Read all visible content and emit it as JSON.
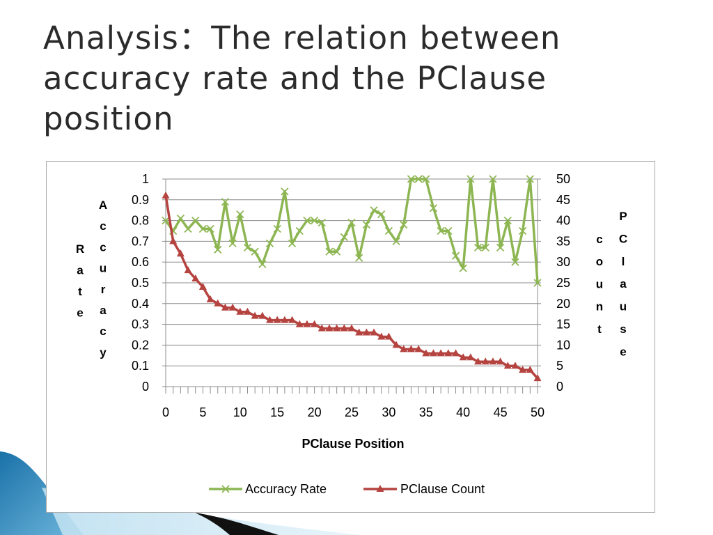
{
  "slide": {
    "title": "Analysis：The relation between accuracy rate and the PClause position"
  },
  "colors": {
    "accuracy": "#8db653",
    "count": "#b5433f",
    "grid": "#8c8c8c",
    "title": "#2b2b2b"
  },
  "chart_data": {
    "type": "line",
    "xlabel": "PClause Position",
    "ylabel_left": [
      "Rate",
      "Accuracy"
    ],
    "ylabel_right": [
      "count",
      "PClause"
    ],
    "x_ticks": [
      "0",
      "5",
      "10",
      "15",
      "20",
      "25",
      "30",
      "35",
      "40",
      "45",
      "50"
    ],
    "y_left_ticks": [
      "0",
      "0.1",
      "0.2",
      "0.3",
      "0.4",
      "0.5",
      "0.6",
      "0.7",
      "0.8",
      "0.9",
      "1"
    ],
    "y_right_ticks": [
      "0",
      "5",
      "10",
      "15",
      "20",
      "25",
      "30",
      "35",
      "40",
      "45",
      "50"
    ],
    "xlim": [
      0,
      50
    ],
    "ylim_left": [
      0,
      1
    ],
    "ylim_right": [
      0,
      50
    ],
    "grid": true,
    "legend_position": "bottom",
    "x": [
      0,
      1,
      2,
      3,
      4,
      5,
      6,
      7,
      8,
      9,
      10,
      11,
      12,
      13,
      14,
      15,
      16,
      17,
      18,
      19,
      20,
      21,
      22,
      23,
      24,
      25,
      26,
      27,
      28,
      29,
      30,
      31,
      32,
      33,
      34,
      35,
      36,
      37,
      38,
      39,
      40,
      41,
      42,
      43,
      44,
      45,
      46,
      47,
      48,
      49,
      50
    ],
    "series": [
      {
        "name": "Accuracy Rate",
        "axis": "left",
        "marker": "x",
        "values": [
          0.8,
          0.75,
          0.81,
          0.76,
          0.8,
          0.76,
          0.76,
          0.66,
          0.89,
          0.69,
          0.83,
          0.67,
          0.65,
          0.59,
          0.69,
          0.76,
          0.94,
          0.69,
          0.75,
          0.8,
          0.8,
          0.79,
          0.65,
          0.65,
          0.72,
          0.79,
          0.62,
          0.78,
          0.85,
          0.83,
          0.75,
          0.7,
          0.78,
          1.0,
          1.0,
          1.0,
          0.86,
          0.75,
          0.75,
          0.63,
          0.57,
          1.0,
          0.67,
          0.67,
          1.0,
          0.67,
          0.8,
          0.6,
          0.75,
          1.0,
          0.5
        ]
      },
      {
        "name": "PClause Count",
        "axis": "right",
        "marker": "triangle",
        "values": [
          46,
          35,
          32,
          28,
          26,
          24,
          21,
          20,
          19,
          19,
          18,
          18,
          17,
          17,
          16,
          16,
          16,
          16,
          15,
          15,
          15,
          14,
          14,
          14,
          14,
          14,
          13,
          13,
          13,
          12,
          12,
          10,
          9,
          9,
          9,
          8,
          8,
          8,
          8,
          8,
          7,
          7,
          6,
          6,
          6,
          6,
          5,
          5,
          4,
          4,
          2
        ]
      }
    ]
  }
}
